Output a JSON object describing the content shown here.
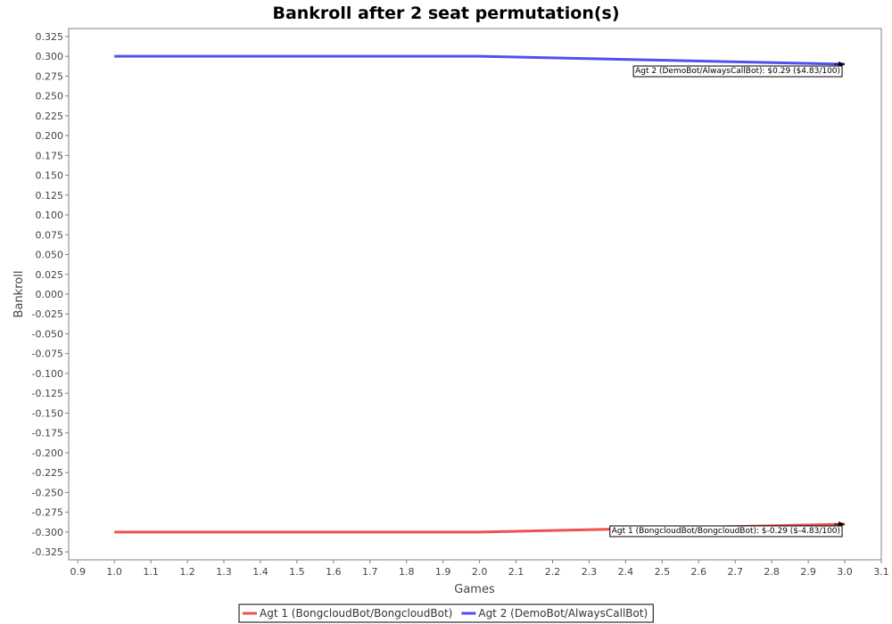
{
  "chart_data": {
    "type": "line",
    "title": "Bankroll after 2 seat permutation(s)",
    "xlabel": "Games",
    "ylabel": "Bankroll",
    "xlim": [
      0.875,
      3.1
    ],
    "ylim": [
      -0.335,
      0.335
    ],
    "x_ticks": [
      0.9,
      1.0,
      1.1,
      1.2,
      1.3,
      1.4,
      1.5,
      1.6,
      1.7,
      1.8,
      1.9,
      2.0,
      2.1,
      2.2,
      2.3,
      2.4,
      2.5,
      2.6,
      2.7,
      2.8,
      2.9,
      3.0,
      3.1
    ],
    "x_tick_labels": [
      "0.9",
      "1.0",
      "1.1",
      "1.2",
      "1.3",
      "1.4",
      "1.5",
      "1.6",
      "1.7",
      "1.8",
      "1.9",
      "2.0",
      "2.1",
      "2.2",
      "2.3",
      "2.4",
      "2.5",
      "2.6",
      "2.7",
      "2.8",
      "2.9",
      "3.0",
      "3.1"
    ],
    "y_ticks": [
      0.325,
      0.3,
      0.275,
      0.25,
      0.225,
      0.2,
      0.175,
      0.15,
      0.125,
      0.1,
      0.075,
      0.05,
      0.025,
      0.0,
      -0.025,
      -0.05,
      -0.075,
      -0.1,
      -0.125,
      -0.15,
      -0.175,
      -0.2,
      -0.225,
      -0.25,
      -0.275,
      -0.3,
      -0.325
    ],
    "y_tick_labels": [
      "0.325",
      "0.300",
      "0.275",
      "0.250",
      "0.225",
      "0.200",
      "0.175",
      "0.150",
      "0.125",
      "0.100",
      "0.075",
      "0.050",
      "0.025",
      "0.000",
      "-0.025",
      "-0.050",
      "-0.075",
      "-0.100",
      "-0.125",
      "-0.150",
      "-0.175",
      "-0.200",
      "-0.225",
      "-0.250",
      "-0.275",
      "-0.300",
      "-0.325"
    ],
    "grid": false,
    "legend_position": "bottom",
    "x": [
      1,
      2,
      3
    ],
    "series": [
      {
        "name": "Agt 1 (BongcloudBot/BongcloudBot)",
        "color": "#f05050",
        "values": [
          -0.3,
          -0.3,
          -0.29
        ]
      },
      {
        "name": "Agt 2 (DemoBot/AlwaysCallBot)",
        "color": "#5050f0",
        "values": [
          0.3,
          0.3,
          0.29
        ]
      }
    ],
    "annotations": [
      {
        "text": "Agt 1 (BongcloudBot/BongcloudBot): $-0.29 ($-4.83/100)",
        "x": 3.0,
        "y": -0.29,
        "series": 0
      },
      {
        "text": "Agt 2 (DemoBot/AlwaysCallBot): $0.29 ($4.83/100)",
        "x": 3.0,
        "y": 0.29,
        "series": 1
      }
    ]
  }
}
